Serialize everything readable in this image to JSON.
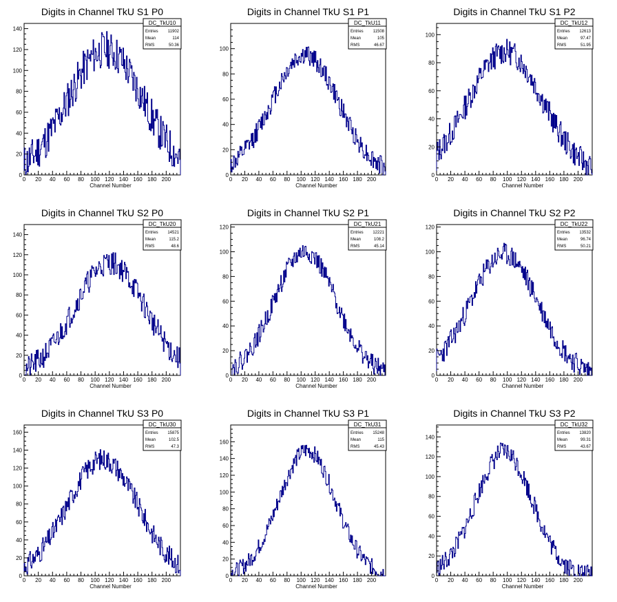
{
  "line_color": "#00008b",
  "stat_labels": {
    "entries": "Entries",
    "mean": "Mean",
    "rms": "RMS"
  },
  "chart_data": [
    {
      "type": "histogram",
      "title": "Digits in Channel TkU S1 P0",
      "xlabel": "Channel Number",
      "ylabel": "",
      "xlim": [
        0,
        220
      ],
      "ylim": [
        0,
        145
      ],
      "xticks": [
        0,
        20,
        40,
        60,
        80,
        100,
        120,
        140,
        160,
        180,
        200
      ],
      "yticks": [
        0,
        20,
        40,
        60,
        80,
        100,
        120,
        140
      ],
      "stats": {
        "name": "DC_TkU10",
        "entries": "11902",
        "mean": "114",
        "rms": "50.36"
      },
      "shape": {
        "peak": 120,
        "center": 114,
        "width": 55,
        "noise": 18,
        "seed": 11
      },
      "grid": false
    },
    {
      "type": "histogram",
      "title": "Digits in Channel TkU S1 P1",
      "xlabel": "Channel Number",
      "ylabel": "",
      "xlim": [
        0,
        220
      ],
      "ylim": [
        0,
        120
      ],
      "xticks": [
        0,
        20,
        40,
        60,
        80,
        100,
        120,
        140,
        160,
        180,
        200
      ],
      "yticks": [
        0,
        20,
        40,
        60,
        80,
        100
      ],
      "stats": {
        "name": "DC_TkU11",
        "entries": "11508",
        "mean": "105",
        "rms": "46.67"
      },
      "shape": {
        "peak": 95,
        "center": 105,
        "width": 50,
        "noise": 8,
        "seed": 12
      },
      "grid": false
    },
    {
      "type": "histogram",
      "title": "Digits in Channel TkU S1 P2",
      "xlabel": "Channel Number",
      "ylabel": "",
      "xlim": [
        0,
        220
      ],
      "ylim": [
        0,
        108
      ],
      "xticks": [
        0,
        20,
        40,
        60,
        80,
        100,
        120,
        140,
        160,
        180,
        200
      ],
      "yticks": [
        0,
        20,
        40,
        60,
        80,
        100
      ],
      "stats": {
        "name": "DC_TkU12",
        "entries": "12613",
        "mean": "97.47",
        "rms": "51.95"
      },
      "shape": {
        "peak": 88,
        "center": 97,
        "width": 55,
        "noise": 9,
        "seed": 13
      },
      "grid": false
    },
    {
      "type": "histogram",
      "title": "Digits in Channel TkU S2 P0",
      "xlabel": "Channel Number",
      "ylabel": "",
      "xlim": [
        0,
        220
      ],
      "ylim": [
        0,
        150
      ],
      "xticks": [
        0,
        20,
        40,
        60,
        80,
        100,
        120,
        140,
        160,
        180,
        200
      ],
      "yticks": [
        0,
        20,
        40,
        60,
        80,
        100,
        120,
        140
      ],
      "stats": {
        "name": "DC_TkU20",
        "entries": "14521",
        "mean": "115.2",
        "rms": "48.6"
      },
      "shape": {
        "peak": 112,
        "center": 120,
        "width": 52,
        "noise": 12,
        "seed": 21
      },
      "grid": false
    },
    {
      "type": "histogram",
      "title": "Digits in Channel TkU S2 P1",
      "xlabel": "Channel Number",
      "ylabel": "",
      "xlim": [
        0,
        220
      ],
      "ylim": [
        0,
        122
      ],
      "xticks": [
        0,
        20,
        40,
        60,
        80,
        100,
        120,
        140,
        160,
        180,
        200
      ],
      "yticks": [
        0,
        20,
        40,
        60,
        80,
        100,
        120
      ],
      "stats": {
        "name": "DC_TkU21",
        "entries": "12221",
        "mean": "108.2",
        "rms": "45.14"
      },
      "shape": {
        "peak": 100,
        "center": 105,
        "width": 46,
        "noise": 8,
        "seed": 22
      },
      "grid": false
    },
    {
      "type": "histogram",
      "title": "Digits in Channel TkU S2 P2",
      "xlabel": "Channel Number",
      "ylabel": "",
      "xlim": [
        0,
        220
      ],
      "ylim": [
        0,
        122
      ],
      "xticks": [
        0,
        20,
        40,
        60,
        80,
        100,
        120,
        140,
        160,
        180,
        200
      ],
      "yticks": [
        0,
        20,
        40,
        60,
        80,
        100,
        120
      ],
      "stats": {
        "name": "DC_TkU22",
        "entries": "13532",
        "mean": "96.74",
        "rms": "50.21"
      },
      "shape": {
        "peak": 98,
        "center": 95,
        "width": 50,
        "noise": 9,
        "seed": 23
      },
      "grid": false
    },
    {
      "type": "histogram",
      "title": "Digits in Channel TkU S3 P0",
      "xlabel": "Channel Number",
      "ylabel": "",
      "xlim": [
        0,
        220
      ],
      "ylim": [
        0,
        168
      ],
      "xticks": [
        0,
        20,
        40,
        60,
        80,
        100,
        120,
        140,
        160,
        180,
        200
      ],
      "yticks": [
        0,
        20,
        40,
        60,
        80,
        100,
        120,
        140,
        160
      ],
      "stats": {
        "name": "DC_TkU30",
        "entries": "15875",
        "mean": "102.5",
        "rms": "47.3"
      },
      "shape": {
        "peak": 130,
        "center": 110,
        "width": 52,
        "noise": 12,
        "seed": 31
      },
      "grid": false
    },
    {
      "type": "histogram",
      "title": "Digits in Channel TkU S3 P1",
      "xlabel": "Channel Number",
      "ylabel": "",
      "xlim": [
        0,
        220
      ],
      "ylim": [
        0,
        180
      ],
      "xticks": [
        0,
        20,
        40,
        60,
        80,
        100,
        120,
        140,
        160,
        180,
        200
      ],
      "yticks": [
        0,
        20,
        40,
        60,
        80,
        100,
        120,
        140,
        160
      ],
      "stats": {
        "name": "DC_TkU31",
        "entries": "15248",
        "mean": "115",
        "rms": "45.43"
      },
      "shape": {
        "peak": 150,
        "center": 108,
        "width": 42,
        "noise": 10,
        "seed": 32
      },
      "grid": false
    },
    {
      "type": "histogram",
      "title": "Digits in Channel TkU S3 P2",
      "xlabel": "Channel Number",
      "ylabel": "",
      "xlim": [
        0,
        220
      ],
      "ylim": [
        0,
        152
      ],
      "xticks": [
        0,
        20,
        40,
        60,
        80,
        100,
        120,
        140,
        160,
        180,
        200
      ],
      "yticks": [
        0,
        20,
        40,
        60,
        80,
        100,
        120,
        140
      ],
      "stats": {
        "name": "DC_TkU32",
        "entries": "13820",
        "mean": "99.31",
        "rms": "43.67"
      },
      "shape": {
        "peak": 125,
        "center": 95,
        "width": 42,
        "noise": 10,
        "seed": 33
      },
      "grid": false
    }
  ]
}
